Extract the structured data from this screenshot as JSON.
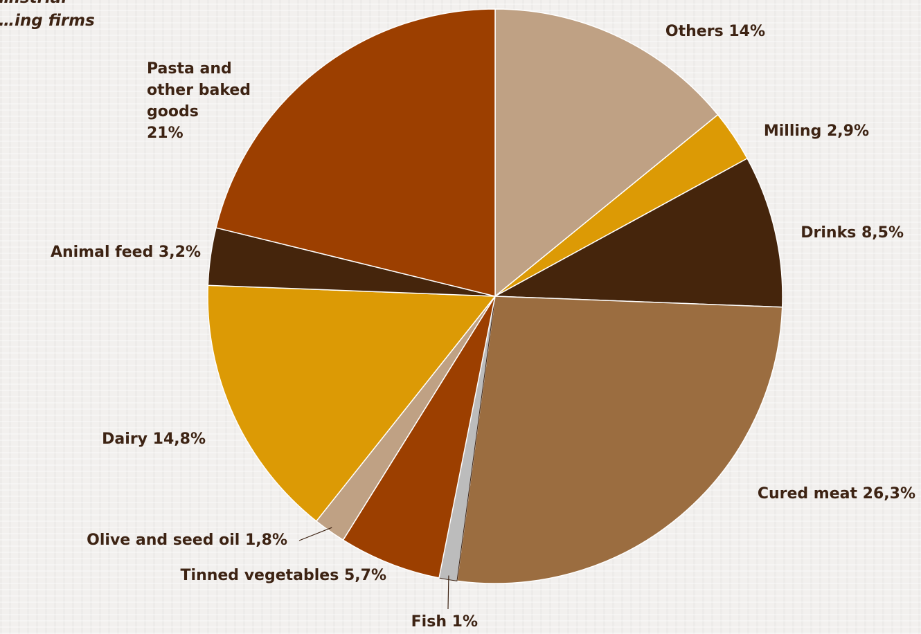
{
  "subtitle": {
    "line1": "…istrial",
    "line2": "…ing firms"
  },
  "chart_data": {
    "type": "pie",
    "title": "",
    "start": "12 o'clock",
    "direction": "clockwise",
    "slices": [
      {
        "name": "Others",
        "value": 14,
        "label": "Others 14%",
        "color": "#bfa184"
      },
      {
        "name": "Milling",
        "value": 2.9,
        "label": "Milling 2,9%",
        "color": "#dc9a05"
      },
      {
        "name": "Drinks",
        "value": 8.5,
        "label": "Drinks 8,5%",
        "color": "#45250c"
      },
      {
        "name": "Cured meat",
        "value": 26.3,
        "label": "Cured meat 26,3%",
        "color": "#9b6d40"
      },
      {
        "name": "Fish",
        "value": 1,
        "label": "Fish 1%",
        "color": "#bcbcbc"
      },
      {
        "name": "Tinned vegetables",
        "value": 5.7,
        "label": "Tinned vegetables 5,7%",
        "color": "#9c3f00"
      },
      {
        "name": "Olive and seed oil",
        "value": 1.8,
        "label": "Olive and seed oil 1,8%",
        "color": "#bfa184"
      },
      {
        "name": "Dairy",
        "value": 14.8,
        "label": "Dairy 14,8%",
        "color": "#dc9a05"
      },
      {
        "name": "Animal feed",
        "value": 3.2,
        "label": "Animal  feed 3,2%",
        "color": "#45250c"
      },
      {
        "name": "Pasta and other baked goods",
        "value": 21,
        "label_lines": [
          "Pasta and",
          "other baked",
          "goods",
          "21%"
        ],
        "color": "#9c3f00"
      }
    ]
  }
}
